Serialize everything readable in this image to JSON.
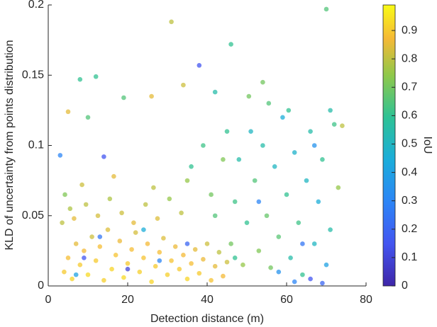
{
  "chart_data": {
    "type": "scatter",
    "xlabel": "Detection distance (m)",
    "ylabel": "KLD of uncertainty from points distribution",
    "xlim": [
      0,
      80
    ],
    "xticks": [
      0,
      20,
      40,
      60,
      80
    ],
    "ylim": [
      0,
      0.2
    ],
    "yticks": [
      0,
      0.05,
      0.1,
      0.15,
      0.2
    ],
    "colorbar": {
      "label": "IoU",
      "lim": [
        0,
        0.99
      ],
      "ticks": [
        0,
        0.1,
        0.2,
        0.3,
        0.4,
        0.5,
        0.6,
        0.7,
        0.8,
        0.9
      ]
    },
    "points": [
      [
        4,
        0.01,
        0.9
      ],
      [
        5,
        0.02,
        0.88
      ],
      [
        6,
        0.005,
        0.92
      ],
      [
        7,
        0.03,
        0.85
      ],
      [
        8,
        0.015,
        0.9
      ],
      [
        9,
        0.025,
        0.87
      ],
      [
        10,
        0.008,
        0.93
      ],
      [
        11,
        0.035,
        0.82
      ],
      [
        12,
        0.018,
        0.9
      ],
      [
        13,
        0.028,
        0.88
      ],
      [
        14,
        0.004,
        0.91
      ],
      [
        15,
        0.04,
        0.84
      ],
      [
        16,
        0.012,
        0.92
      ],
      [
        17,
        0.022,
        0.89
      ],
      [
        18,
        0.032,
        0.86
      ],
      [
        19,
        0.006,
        0.93
      ],
      [
        20,
        0.016,
        0.9
      ],
      [
        21,
        0.026,
        0.88
      ],
      [
        22,
        0.038,
        0.83
      ],
      [
        23,
        0.01,
        0.91
      ],
      [
        24,
        0.02,
        0.89
      ],
      [
        25,
        0.03,
        0.87
      ],
      [
        26,
        0.003,
        0.92
      ],
      [
        27,
        0.014,
        0.9
      ],
      [
        28,
        0.024,
        0.88
      ],
      [
        29,
        0.034,
        0.84
      ],
      [
        30,
        0.008,
        0.91
      ],
      [
        31,
        0.018,
        0.89
      ],
      [
        32,
        0.028,
        0.86
      ],
      [
        33,
        0.012,
        0.9
      ],
      [
        34,
        0.022,
        0.87
      ],
      [
        35,
        0.005,
        0.92
      ],
      [
        36,
        0.016,
        0.88
      ],
      [
        37,
        0.026,
        0.85
      ],
      [
        38,
        0.009,
        0.9
      ],
      [
        39,
        0.019,
        0.86
      ],
      [
        40,
        0.03,
        0.82
      ],
      [
        41,
        0.004,
        0.89
      ],
      [
        42,
        0.014,
        0.85
      ],
      [
        43,
        0.024,
        0.8
      ],
      [
        44,
        0.007,
        0.87
      ],
      [
        45,
        0.017,
        0.82
      ],
      [
        3.5,
        0.045,
        0.8
      ],
      [
        5.5,
        0.055,
        0.78
      ],
      [
        4.2,
        0.065,
        0.72
      ],
      [
        6.5,
        0.048,
        0.85
      ],
      [
        9.5,
        0.058,
        0.8
      ],
      [
        12.5,
        0.05,
        0.83
      ],
      [
        15.5,
        0.062,
        0.78
      ],
      [
        18.5,
        0.052,
        0.82
      ],
      [
        21.5,
        0.045,
        0.85
      ],
      [
        24.5,
        0.058,
        0.8
      ],
      [
        27.5,
        0.048,
        0.84
      ],
      [
        30.5,
        0.062,
        0.75
      ],
      [
        33.5,
        0.052,
        0.8
      ],
      [
        8.5,
        0.072,
        0.82
      ],
      [
        16.5,
        0.078,
        0.85
      ],
      [
        26.5,
        0.07,
        0.8
      ],
      [
        35,
        0.075,
        0.75
      ],
      [
        9,
        0.02,
        0.15
      ],
      [
        13,
        0.035,
        0.25
      ],
      [
        20,
        0.012,
        0.1
      ],
      [
        28,
        0.018,
        0.3
      ],
      [
        35,
        0.03,
        0.2
      ],
      [
        7,
        0.008,
        0.4
      ],
      [
        24,
        0.04,
        0.45
      ],
      [
        46,
        0.03,
        0.7
      ],
      [
        47,
        0.06,
        0.62
      ],
      [
        48,
        0.09,
        0.55
      ],
      [
        49,
        0.015,
        0.75
      ],
      [
        50,
        0.045,
        0.6
      ],
      [
        51,
        0.11,
        0.5
      ],
      [
        52,
        0.075,
        0.65
      ],
      [
        53,
        0.025,
        0.72
      ],
      [
        54,
        0.1,
        0.55
      ],
      [
        55,
        0.05,
        0.68
      ],
      [
        56,
        0.013,
        0.7
      ],
      [
        57,
        0.085,
        0.5
      ],
      [
        58,
        0.035,
        0.66
      ],
      [
        59,
        0.12,
        0.45
      ],
      [
        60,
        0.065,
        0.6
      ],
      [
        61,
        0.02,
        0.55
      ],
      [
        62,
        0.095,
        0.48
      ],
      [
        63,
        0.045,
        0.62
      ],
      [
        64,
        0.008,
        0.6
      ],
      [
        65,
        0.075,
        0.5
      ],
      [
        66,
        0.11,
        0.55
      ],
      [
        67,
        0.03,
        0.5
      ],
      [
        68,
        0.06,
        0.45
      ],
      [
        69,
        0.09,
        0.6
      ],
      [
        70,
        0.015,
        0.4
      ],
      [
        71,
        0.04,
        0.55
      ],
      [
        72,
        0.115,
        0.62
      ],
      [
        73,
        0.07,
        0.75
      ],
      [
        60.5,
        0.125,
        0.6
      ],
      [
        55.5,
        0.13,
        0.65
      ],
      [
        50.5,
        0.135,
        0.7
      ],
      [
        45,
        0.11,
        0.6
      ],
      [
        44,
        0.09,
        0.72
      ],
      [
        41,
        0.065,
        0.7
      ],
      [
        39,
        0.1,
        0.62
      ],
      [
        36,
        0.085,
        0.6
      ],
      [
        42,
        0.05,
        0.65
      ],
      [
        47,
        0.02,
        0.6
      ],
      [
        62,
        0.003,
        0.3
      ],
      [
        66,
        0.005,
        0.15
      ],
      [
        69,
        0.002,
        0.2
      ],
      [
        58,
        0.01,
        0.35
      ],
      [
        64,
        0.03,
        0.25
      ],
      [
        53,
        0.06,
        0.3
      ],
      [
        67,
        0.1,
        0.35
      ],
      [
        71,
        0.125,
        0.55
      ],
      [
        74,
        0.114,
        0.8
      ],
      [
        70,
        0.197,
        0.65
      ],
      [
        31,
        0.188,
        0.8
      ],
      [
        46,
        0.172,
        0.6
      ],
      [
        38,
        0.157,
        0.15
      ],
      [
        8,
        0.147,
        0.6
      ],
      [
        12,
        0.149,
        0.6
      ],
      [
        5,
        0.124,
        0.85
      ],
      [
        26,
        0.135,
        0.85
      ],
      [
        14,
        0.092,
        0.15
      ],
      [
        3,
        0.093,
        0.3
      ],
      [
        19,
        0.134,
        0.65
      ],
      [
        10,
        0.12,
        0.65
      ],
      [
        42,
        0.138,
        0.55
      ],
      [
        54,
        0.145,
        0.7
      ],
      [
        34,
        0.143,
        0.82
      ]
    ]
  }
}
